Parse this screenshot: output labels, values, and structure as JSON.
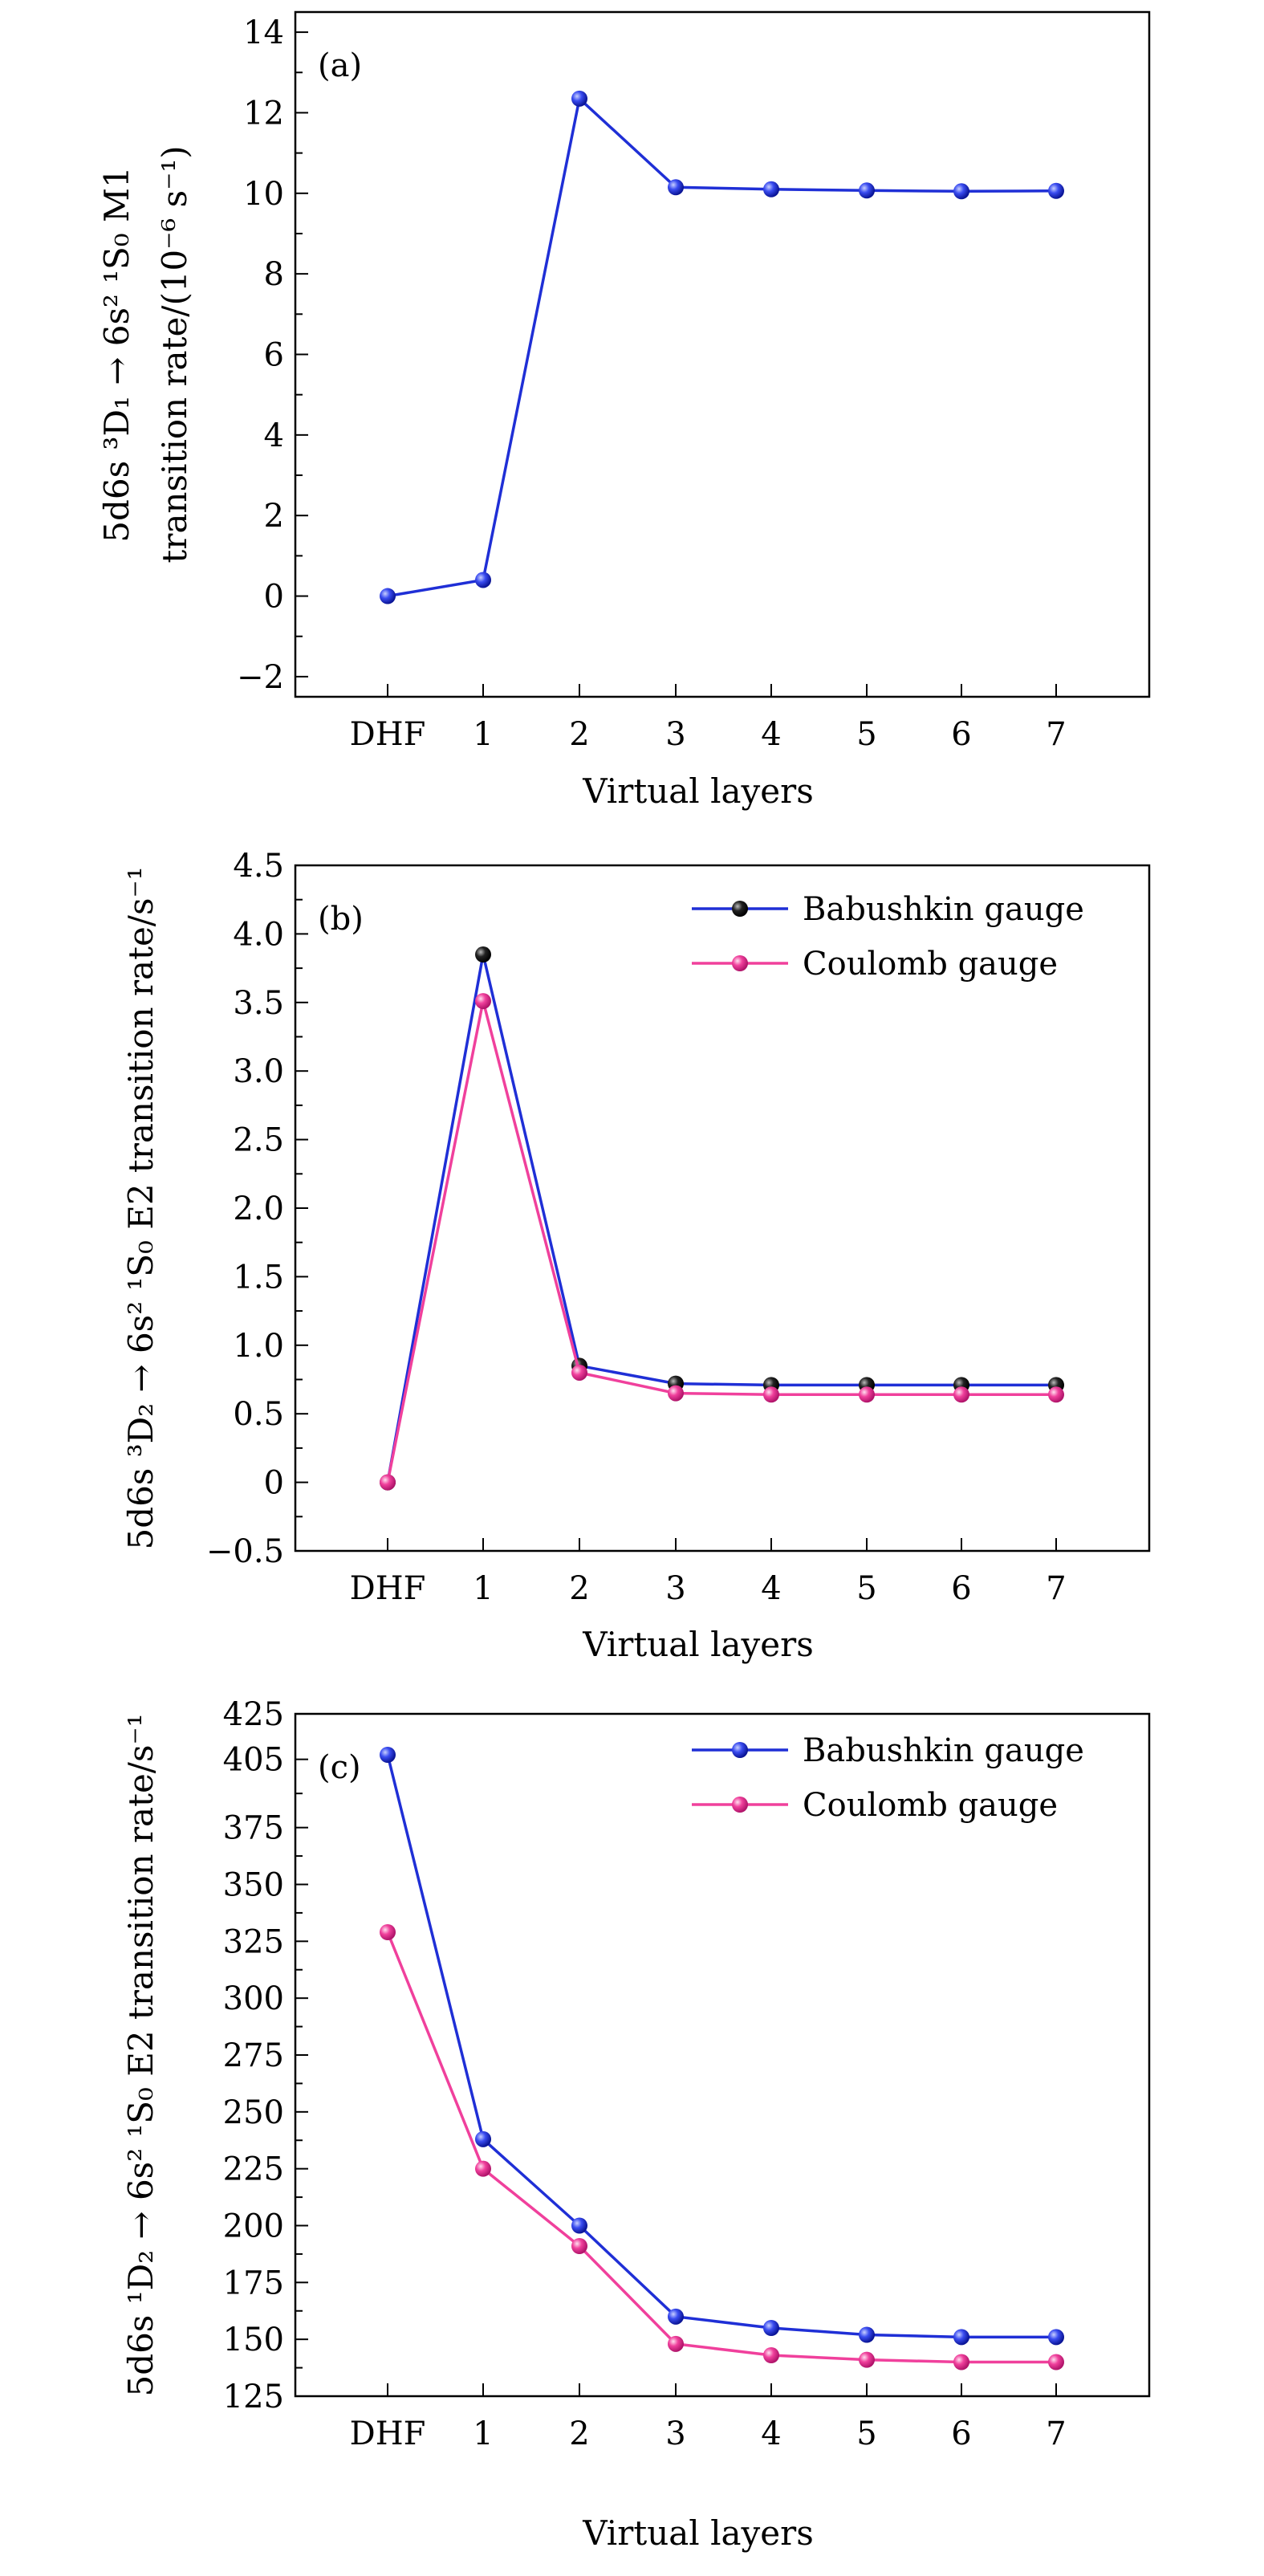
{
  "chart_data": [
    {
      "type": "line",
      "panel_label": "(a)",
      "categories": [
        "DHF",
        "1",
        "2",
        "3",
        "4",
        "5",
        "6",
        "7"
      ],
      "xlabel": "Virtual layers",
      "ylabel_line1": "5d6s ³D₁ → 6s² ¹S₀ M1",
      "ylabel_line2": "transition rate/(10⁻⁶ s⁻¹)",
      "ylim": [
        -2.5,
        14.5
      ],
      "yticks": [
        -2,
        0,
        2,
        4,
        6,
        8,
        10,
        12,
        14
      ],
      "ytick_labels": [
        "−2",
        "0",
        "2",
        "4",
        "6",
        "8",
        "10",
        "12",
        "14"
      ],
      "legend": "none",
      "series": [
        {
          "name": "M1",
          "color": "#1f2fd6",
          "marker_color": "#1f2fd6",
          "values": [
            0,
            0.4,
            12.35,
            10.15,
            10.1,
            10.07,
            10.05,
            10.06
          ]
        }
      ]
    },
    {
      "type": "line",
      "panel_label": "(b)",
      "categories": [
        "DHF",
        "1",
        "2",
        "3",
        "4",
        "5",
        "6",
        "7"
      ],
      "xlabel": "Virtual layers",
      "ylabel_line1": "5d6s ³D₂ → 6s² ¹S₀ E2 transition rate/s⁻¹",
      "ylabel_line2": "",
      "ylim": [
        -0.5,
        4.5
      ],
      "yticks": [
        -0.5,
        0,
        0.5,
        1.0,
        1.5,
        2.0,
        2.5,
        3.0,
        3.5,
        4.0,
        4.5
      ],
      "ytick_labels": [
        "−0.5",
        "0",
        "0.5",
        "1.0",
        "1.5",
        "2.0",
        "2.5",
        "3.0",
        "3.5",
        "4.0",
        "4.5"
      ],
      "legend": "top-right",
      "series": [
        {
          "name": "Babushkin gauge",
          "color": "#1f2fd6",
          "marker_color": "#111111",
          "values": [
            0,
            3.85,
            0.85,
            0.72,
            0.71,
            0.71,
            0.71,
            0.71
          ]
        },
        {
          "name": "Coulomb gauge",
          "color": "#f0409c",
          "marker_color": "#f0409c",
          "values": [
            0,
            3.51,
            0.8,
            0.65,
            0.64,
            0.64,
            0.64,
            0.64
          ]
        }
      ]
    },
    {
      "type": "line",
      "panel_label": "(c)",
      "categories": [
        "DHF",
        "1",
        "2",
        "3",
        "4",
        "5",
        "6",
        "7"
      ],
      "xlabel": "Virtual layers",
      "ylabel_line1": "5d6s ¹D₂ → 6s² ¹S₀ E2 transition rate/s⁻¹",
      "ylabel_line2": "",
      "ylim": [
        125,
        425
      ],
      "yticks": [
        125,
        150,
        175,
        200,
        225,
        250,
        275,
        300,
        325,
        350,
        375,
        405,
        425
      ],
      "ytick_labels": [
        "125",
        "150",
        "175",
        "200",
        "225",
        "250",
        "275",
        "300",
        "325",
        "350",
        "375",
        "405",
        "425"
      ],
      "legend": "top-right",
      "series": [
        {
          "name": "Babushkin gauge",
          "color": "#1f2fd6",
          "marker_color": "#1f2fd6",
          "values": [
            407,
            238,
            200,
            160,
            155,
            152,
            151,
            151
          ]
        },
        {
          "name": "Coulomb gauge",
          "color": "#f0409c",
          "marker_color": "#f0409c",
          "values": [
            329,
            225,
            191,
            148,
            143,
            141,
            140,
            140
          ]
        }
      ]
    }
  ]
}
